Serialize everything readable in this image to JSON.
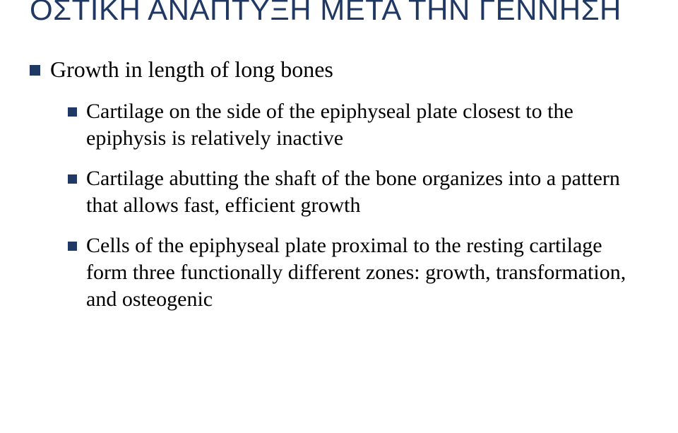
{
  "title": {
    "text": "ΟΣΤΙΚΗ ΑΝΑΠΤΥΞΗ ΜΕΤΑ ΤΗΝ ΓΕΝΝΗΣΗ",
    "color": "#203864",
    "fontsize": 42,
    "fontweight": "400"
  },
  "bullets": {
    "square_color": "#203864",
    "text_color": "#000000",
    "level1_fontsize": 32,
    "level2_fontsize": 30,
    "level1": "Growth in length of long bones",
    "level2": [
      "Cartilage on the side of the epiphyseal plate closest to the epiphysis is relatively inactive",
      "Cartilage abutting the shaft of the bone organizes into a pattern that allows fast, efficient growth",
      "Cells of the epiphyseal plate proximal to the resting cartilage form three functionally different zones: growth, transformation, and osteogenic"
    ]
  },
  "background_color": "#ffffff"
}
